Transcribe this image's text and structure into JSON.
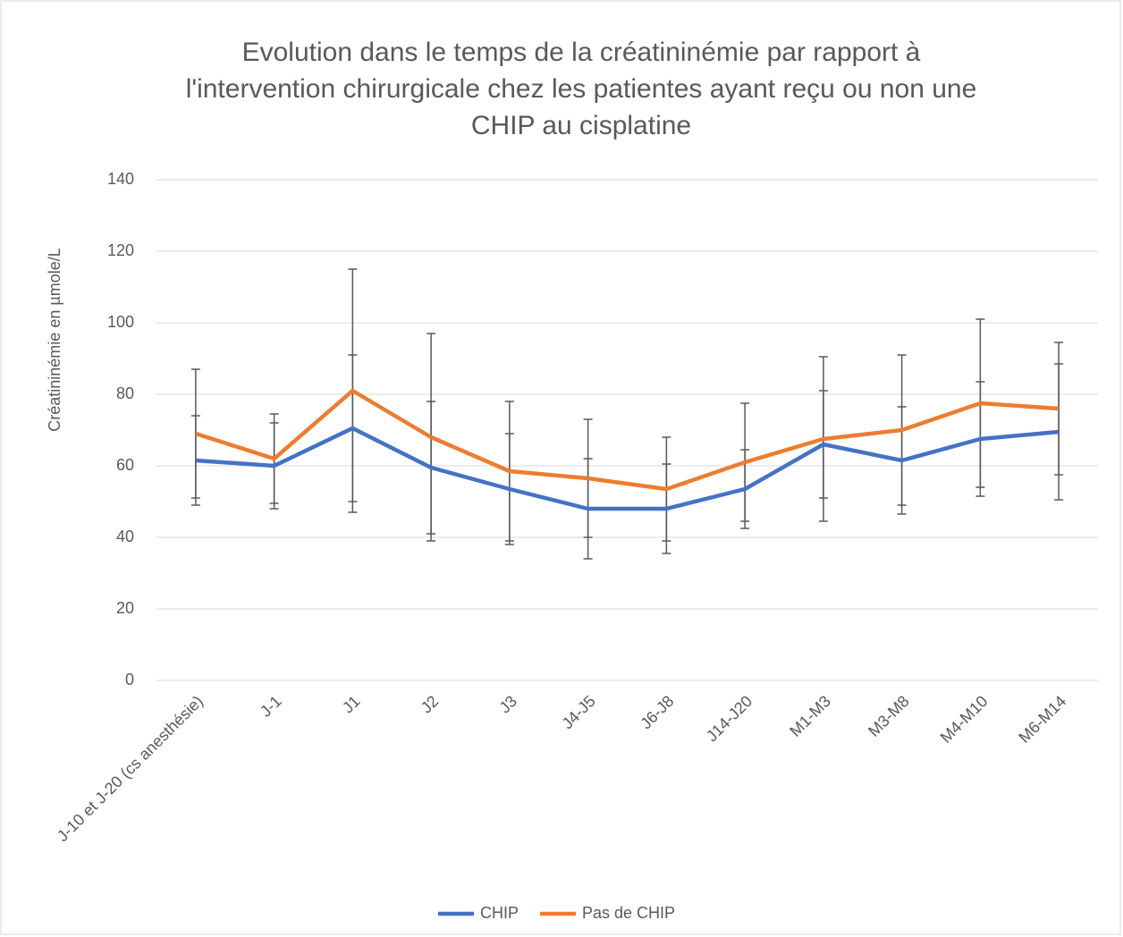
{
  "chart_data": {
    "type": "line",
    "title": "Evolution dans le temps de la créatininémie par rapport à l'intervention chirurgicale chez les patientes ayant reçu ou non une CHIP au cisplatine",
    "y_label": "Créatininémie en µmole/L",
    "categories": [
      "J-10 et J-20 (cs anesthésie)",
      "J-1",
      "J1",
      "J2",
      "J3",
      "J4-J5",
      "J6-J8",
      "J14-J20",
      "M1-M3",
      "M3-M8",
      "M4-M10",
      "M6-M14"
    ],
    "series": [
      {
        "name": "CHIP",
        "color": "#4472c4",
        "values": [
          61.5,
          60,
          70.5,
          59.5,
          53.5,
          48,
          48,
          53.5,
          66,
          61.5,
          67.5,
          69.5
        ],
        "errors": [
          12.5,
          12,
          20.5,
          18.5,
          15.5,
          14,
          12.5,
          11,
          15,
          15,
          16,
          19
        ]
      },
      {
        "name": "Pas de CHIP",
        "color": "#ed7d31",
        "values": [
          69,
          62,
          81,
          68,
          58.5,
          56.5,
          53.5,
          61,
          67.5,
          70,
          77.5,
          76
        ],
        "errors": [
          18,
          12.5,
          34,
          29,
          19.5,
          16.5,
          14.5,
          16.5,
          23,
          21,
          23.5,
          18.5
        ]
      }
    ],
    "ylim": [
      0,
      140
    ],
    "yticks": [
      0,
      20,
      40,
      60,
      80,
      100,
      120,
      140
    ],
    "grid": true,
    "legend": "bottom"
  }
}
